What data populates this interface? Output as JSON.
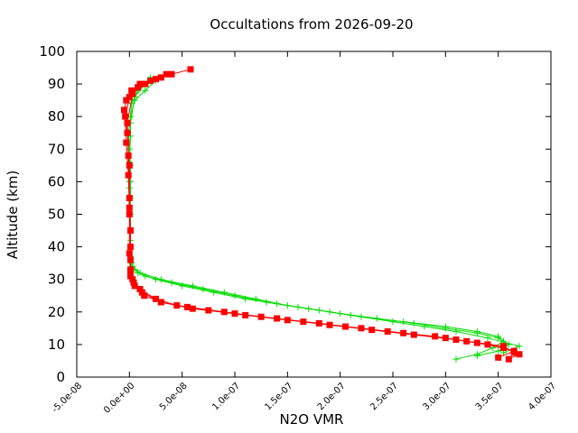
{
  "chart_data": {
    "type": "line",
    "title": "Occultations from 2026-09-20",
    "xlabel": "N2O VMR",
    "ylabel": "Altitude (km)",
    "xlim": [
      -5e-08,
      4e-07
    ],
    "ylim": [
      0,
      100
    ],
    "xticks": [
      -5e-08,
      0,
      5e-08,
      1e-07,
      1.5e-07,
      2e-07,
      2.5e-07,
      3e-07,
      3.5e-07,
      4e-07
    ],
    "xtick_labels": [
      "-5.0e-08",
      "0.0e+00",
      "5.0e-08",
      "1.0e-07",
      "1.5e-07",
      "2.0e-07",
      "2.5e-07",
      "3.0e-07",
      "3.5e-07",
      "4.0e-07"
    ],
    "yticks": [
      0,
      10,
      20,
      30,
      40,
      50,
      60,
      70,
      80,
      90,
      100
    ],
    "ytick_labels": [
      "0",
      "10",
      "20",
      "30",
      "40",
      "50",
      "60",
      "70",
      "80",
      "90",
      "100"
    ],
    "grid": false,
    "legend": "none",
    "series": [
      {
        "color": "#00dd00",
        "marker": "plus",
        "profiles": [
          {
            "x": [
              3.1e-07,
              3.3e-07,
              3.45e-07,
              3.55e-07,
              3.5e-07,
              3.3e-07,
              3e-07,
              2.6e-07,
              2.2e-07,
              1.9e-07,
              1.6e-07,
              1.3e-07,
              1e-07,
              7e-08,
              4e-08,
              1.5e-08,
              5e-09,
              2e-09,
              1e-09,
              1e-09,
              1e-09,
              1e-09,
              1e-09,
              1e-09,
              0,
              -1e-09,
              1e-09,
              5e-09,
              1.5e-08,
              2.5e-08
            ],
            "y": [
              5.5,
              7,
              9,
              11,
              12.5,
              14,
              15.5,
              17,
              18.5,
              20,
              21.5,
              23,
              25,
              27,
              29,
              31,
              33,
              35,
              40,
              45,
              50,
              55,
              60,
              65,
              70,
              75,
              80,
              85,
              88,
              91
            ]
          },
          {
            "x": [
              3.3e-07,
              3.5e-07,
              3.6e-07,
              3.5e-07,
              3.3e-07,
              3e-07,
              2.7e-07,
              2.35e-07,
              2e-07,
              1.7e-07,
              1.4e-07,
              1.1e-07,
              8e-08,
              5e-08,
              2.5e-08,
              8e-09,
              3e-09,
              1e-09,
              1e-09,
              1e-09,
              0,
              0,
              1e-09,
              1e-09,
              2e-09,
              8e-09,
              2e-08
            ],
            "y": [
              6.5,
              8,
              10,
              12,
              13.5,
              15,
              16.5,
              18,
              19.5,
              21,
              22.5,
              24,
              26,
              28,
              30,
              32,
              34,
              36,
              42,
              50,
              58,
              66,
              74,
              80,
              84,
              88,
              92
            ]
          },
          {
            "x": [
              3.55e-07,
              3.7e-07,
              3.4e-07,
              3.1e-07,
              2.8e-07,
              2.5e-07,
              2.1e-07,
              1.8e-07,
              1.5e-07,
              1.2e-07,
              9e-08,
              6e-08,
              3e-08,
              1e-08,
              3e-09,
              1e-09,
              1e-09,
              0,
              1e-09,
              5e-09,
              1.5e-08
            ],
            "y": [
              7.5,
              9.5,
              12,
              14,
              15.5,
              17,
              19,
              20.5,
              22,
              24,
              26,
              28,
              30,
              32,
              34,
              37,
              45,
              60,
              78,
              86,
              90
            ]
          }
        ]
      },
      {
        "color": "#ff0000",
        "marker": "square",
        "profiles": [
          {
            "x": [
              3.6e-07,
              3.7e-07,
              3.55e-07,
              3.3e-07,
              3e-07,
              2.6e-07,
              2.2e-07,
              1.8e-07,
              1.4e-07,
              1e-07,
              6e-08,
              3e-08,
              1.2e-08,
              4e-09,
              1e-09,
              1e-09,
              1e-09,
              0,
              0,
              -2e-09,
              -5e-09,
              -3e-09,
              2e-09,
              1e-08,
              2.5e-08,
              4e-08,
              5.8e-08
            ],
            "y": [
              5.5,
              7,
              9,
              10.5,
              12,
              13.5,
              15,
              16.5,
              18,
              19.5,
              21,
              23,
              26,
              29,
              32,
              36,
              45,
              55,
              65,
              75,
              82,
              85,
              88,
              90,
              91.5,
              93,
              94.5
            ]
          },
          {
            "x": [
              3.5e-07,
              3.65e-07,
              3.4e-07,
              3.1e-07,
              2.7e-07,
              2.3e-07,
              1.9e-07,
              1.5e-07,
              1.1e-07,
              7.5e-08,
              4.5e-08,
              2.5e-08,
              1e-08,
              3e-09,
              1e-09,
              1e-09,
              0,
              -1e-09,
              -3e-09,
              -4e-09,
              0,
              8e-09,
              2e-08,
              3.5e-08
            ],
            "y": [
              6,
              8,
              10,
              11.5,
              13,
              14.5,
              16,
              17.5,
              19,
              20.5,
              22,
              24,
              27,
              30,
              33,
              40,
              50,
              62,
              72,
              80,
              86,
              89,
              91,
              93
            ]
          },
          {
            "x": [
              3.65e-07,
              3.55e-07,
              3.2e-07,
              2.9e-07,
              2.45e-07,
              2.05e-07,
              1.65e-07,
              1.25e-07,
              9e-08,
              5.5e-08,
              3e-08,
              1.4e-08,
              5e-09,
              1e-09,
              0,
              0,
              -1e-09,
              -2e-09,
              3e-09,
              1.5e-08,
              3e-08
            ],
            "y": [
              7.5,
              9.5,
              11,
              12.5,
              14,
              15.5,
              17,
              18.5,
              20,
              21.5,
              23,
              25,
              28,
              31,
              38,
              52,
              68,
              78,
              87,
              90,
              92
            ]
          }
        ]
      }
    ]
  }
}
